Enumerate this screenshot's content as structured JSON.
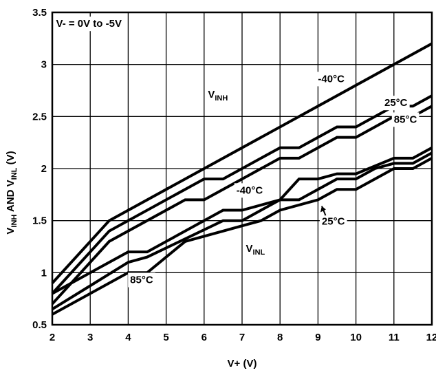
{
  "chart_data": {
    "type": "line",
    "title": "",
    "xlabel": "V+ (V)",
    "ylabel": {
      "parts": [
        [
          "V",
          ""
        ],
        [
          "INH",
          "sub"
        ],
        [
          " AND V",
          ""
        ],
        [
          "INL",
          "sub"
        ],
        [
          " (V)",
          ""
        ]
      ]
    },
    "xlim": [
      2,
      12
    ],
    "ylim": [
      0.5,
      3.5
    ],
    "xticks": [
      "2",
      "3",
      "4",
      "5",
      "6",
      "7",
      "8",
      "9",
      "10",
      "11",
      "12"
    ],
    "yticks": [
      "0.5",
      "1",
      "1.5",
      "2",
      "2.5",
      "3",
      "3.5"
    ],
    "grid": true,
    "series": [
      {
        "group": "VINH",
        "temp": "-40°C",
        "x": [
          2,
          3.5,
          12
        ],
        "y": [
          0.9,
          1.5,
          3.2
        ]
      },
      {
        "group": "VINH",
        "temp": "25°C",
        "x": [
          2,
          3.5,
          6,
          6.5,
          8,
          8.5,
          9.5,
          10,
          11,
          11.5,
          12
        ],
        "y": [
          0.8,
          1.4,
          1.9,
          1.9,
          2.2,
          2.2,
          2.4,
          2.4,
          2.6,
          2.6,
          2.7
        ]
      },
      {
        "group": "VINH",
        "temp": "85°C",
        "x": [
          2,
          3.5,
          5.5,
          6,
          8,
          8.5,
          9.5,
          10,
          11,
          11.5,
          12
        ],
        "y": [
          0.7,
          1.3,
          1.7,
          1.7,
          2.1,
          2.1,
          2.3,
          2.3,
          2.5,
          2.5,
          2.6
        ]
      },
      {
        "group": "VINL",
        "temp": "-40°C",
        "x": [
          2,
          4,
          4.5,
          6.5,
          7,
          8,
          8.5,
          9,
          9.5,
          10,
          11,
          11.5,
          12
        ],
        "y": [
          0.8,
          1.2,
          1.2,
          1.6,
          1.6,
          1.7,
          1.9,
          1.9,
          1.95,
          1.95,
          2.1,
          2.1,
          2.2
        ]
      },
      {
        "group": "VINL",
        "temp": "25°C",
        "x": [
          2,
          4,
          4.5,
          6.5,
          7,
          7.5,
          8,
          8.5,
          9,
          9.5,
          10,
          10.5,
          11,
          11.5,
          12
        ],
        "y": [
          0.65,
          1.1,
          1.15,
          1.5,
          1.5,
          1.6,
          1.7,
          1.7,
          1.8,
          1.9,
          1.9,
          2.0,
          2.05,
          2.05,
          2.15
        ]
      },
      {
        "group": "VINL",
        "temp": "85°C",
        "x": [
          2,
          4,
          4.5,
          5.5,
          6.5,
          7,
          7.5,
          8,
          9,
          9.5,
          10,
          11,
          11.5,
          12
        ],
        "y": [
          0.6,
          1.0,
          1.0,
          1.3,
          1.4,
          1.45,
          1.5,
          1.6,
          1.7,
          1.8,
          1.8,
          2.0,
          2.0,
          2.1
        ]
      }
    ],
    "annotations": [
      {
        "text": "V- = 0V to -5V",
        "x": 2.1,
        "y": 3.36
      },
      {
        "parts": [
          [
            "V",
            ""
          ],
          [
            "INH",
            "sub"
          ]
        ],
        "x": 6.1,
        "y": 2.68
      },
      {
        "parts": [
          [
            "V",
            ""
          ],
          [
            "INL",
            "sub"
          ]
        ],
        "x": 7.1,
        "y": 1.2
      },
      {
        "text": "-40°C",
        "x": 9.0,
        "y": 2.83
      },
      {
        "text": "25°C",
        "x": 10.75,
        "y": 2.6
      },
      {
        "text": "85°C",
        "x": 11.0,
        "y": 2.44
      },
      {
        "text": "-40°C",
        "x": 6.85,
        "y": 1.76
      },
      {
        "text": "25°C",
        "x": 9.1,
        "y": 1.46
      },
      {
        "text": "85°C",
        "x": 4.05,
        "y": 0.9
      }
    ]
  }
}
